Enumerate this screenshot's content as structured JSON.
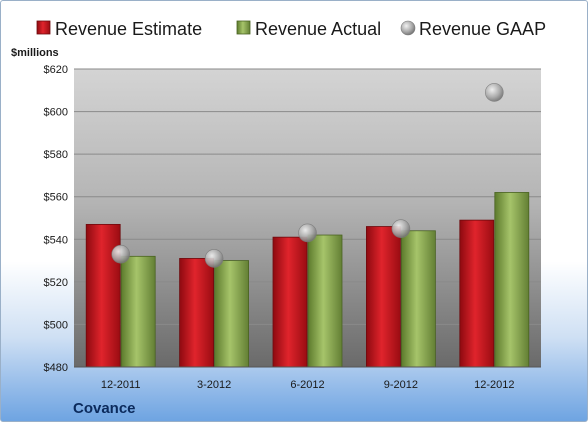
{
  "chart_data": {
    "type": "bar",
    "ylabel": "$millions",
    "ylim": [
      480,
      620
    ],
    "yticks": [
      480,
      500,
      520,
      540,
      560,
      580,
      600,
      620
    ],
    "ytick_labels": [
      "$480",
      "$500",
      "$520",
      "$540",
      "$560",
      "$580",
      "$600",
      "$620"
    ],
    "categories": [
      "12-2011",
      "3-2012",
      "6-2012",
      "9-2012",
      "12-2012"
    ],
    "series": [
      {
        "name": "Revenue Estimate",
        "kind": "bar",
        "color": "#d0101a",
        "values": [
          547,
          531,
          541,
          546,
          549
        ]
      },
      {
        "name": "Revenue Actual",
        "kind": "bar",
        "color": "#86a64a",
        "values": [
          532,
          530,
          542,
          544,
          562
        ]
      },
      {
        "name": "Revenue GAAP",
        "kind": "marker",
        "color": "#a8a8a8",
        "values": [
          533,
          531,
          543,
          545,
          609
        ]
      }
    ],
    "grid": true,
    "legend_position": "top"
  },
  "footer": {
    "company": "Covance"
  }
}
